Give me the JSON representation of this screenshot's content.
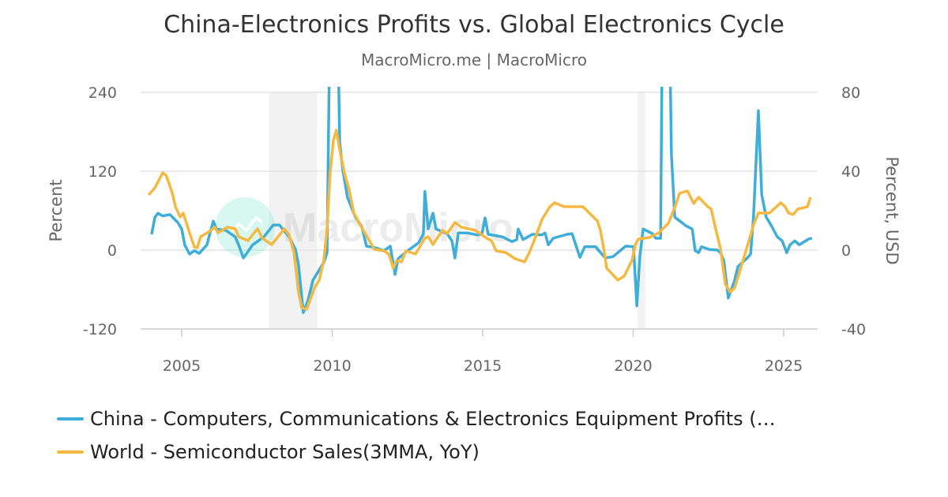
{
  "chart_data": {
    "type": "line",
    "title": "China-Electronics Profits vs. Global Electronics Cycle",
    "subtitle": "MacroMicro.me | MacroMicro",
    "watermark": "MacroMicro",
    "ylabel_left": "Percent",
    "ylabel_right": "Percent, USD",
    "xlim": [
      2004,
      2026.1
    ],
    "ylim_left": [
      -120,
      240
    ],
    "ylim_right": [
      -40,
      80
    ],
    "x_ticks": [
      "2005",
      "2010",
      "2015",
      "2020",
      "2025"
    ],
    "y_ticks_left": [
      "240",
      "120",
      "0",
      "-120"
    ],
    "y_ticks_right": [
      "80",
      "40",
      "0",
      "-40"
    ],
    "grid": true,
    "legend_position": "bottom",
    "shaded_periods": [
      [
        2007.9,
        2009.5
      ],
      [
        2020.15,
        2020.4
      ]
    ],
    "series": [
      {
        "name": "China - Computers, Communications & Electronics Equipment Profits (…",
        "axis": "left",
        "color": "#3eaed9",
        "points": [
          [
            2004.0,
            24
          ],
          [
            2004.11,
            50
          ],
          [
            2004.21,
            56
          ],
          [
            2004.37,
            52
          ],
          [
            2004.61,
            54
          ],
          [
            2004.87,
            42
          ],
          [
            2005.0,
            32
          ],
          [
            2005.1,
            8
          ],
          [
            2005.26,
            -6
          ],
          [
            2005.42,
            -1
          ],
          [
            2005.58,
            -5
          ],
          [
            2005.84,
            8
          ],
          [
            2005.94,
            26
          ],
          [
            2006.05,
            44
          ],
          [
            2006.15,
            32
          ],
          [
            2006.47,
            30
          ],
          [
            2006.78,
            20
          ],
          [
            2006.89,
            8
          ],
          [
            2007.05,
            -12
          ],
          [
            2007.36,
            8
          ],
          [
            2007.73,
            20
          ],
          [
            2008.04,
            38
          ],
          [
            2008.25,
            38
          ],
          [
            2008.57,
            20
          ],
          [
            2008.78,
            1
          ],
          [
            2008.88,
            -22
          ],
          [
            2009.04,
            -95
          ],
          [
            2009.2,
            -76
          ],
          [
            2009.36,
            -46
          ],
          [
            2009.72,
            -19
          ],
          [
            2009.83,
            -4
          ],
          [
            2009.91,
            300
          ],
          [
            2010.2,
            300
          ],
          [
            2010.25,
            164
          ],
          [
            2010.35,
            122
          ],
          [
            2010.51,
            80
          ],
          [
            2010.77,
            50
          ],
          [
            2010.98,
            36
          ],
          [
            2011.14,
            6
          ],
          [
            2011.4,
            4
          ],
          [
            2011.72,
            -1
          ],
          [
            2011.93,
            6
          ],
          [
            2012.09,
            -37
          ],
          [
            2012.19,
            -13
          ],
          [
            2012.51,
            -1
          ],
          [
            2012.87,
            11
          ],
          [
            2013.03,
            24
          ],
          [
            2013.08,
            89
          ],
          [
            2013.19,
            32
          ],
          [
            2013.35,
            56
          ],
          [
            2013.45,
            32
          ],
          [
            2013.82,
            25
          ],
          [
            2013.98,
            14
          ],
          [
            2014.08,
            -12
          ],
          [
            2014.19,
            26
          ],
          [
            2014.5,
            26
          ],
          [
            2014.82,
            23
          ],
          [
            2014.97,
            24
          ],
          [
            2015.08,
            49
          ],
          [
            2015.18,
            24
          ],
          [
            2015.66,
            20
          ],
          [
            2015.97,
            13
          ],
          [
            2016.13,
            16
          ],
          [
            2016.18,
            32
          ],
          [
            2016.34,
            16
          ],
          [
            2016.65,
            24
          ],
          [
            2016.97,
            23
          ],
          [
            2017.07,
            26
          ],
          [
            2017.18,
            8
          ],
          [
            2017.34,
            18
          ],
          [
            2017.81,
            24
          ],
          [
            2017.97,
            25
          ],
          [
            2018.12,
            4
          ],
          [
            2018.23,
            -11
          ],
          [
            2018.39,
            5
          ],
          [
            2018.75,
            5
          ],
          [
            2019.07,
            -12
          ],
          [
            2019.33,
            -10
          ],
          [
            2019.75,
            6
          ],
          [
            2020.01,
            5
          ],
          [
            2020.12,
            -85
          ],
          [
            2020.22,
            -10
          ],
          [
            2020.33,
            32
          ],
          [
            2020.64,
            25
          ],
          [
            2020.75,
            18
          ],
          [
            2020.91,
            18
          ],
          [
            2020.96,
            300
          ],
          [
            2021.22,
            300
          ],
          [
            2021.27,
            146
          ],
          [
            2021.38,
            50
          ],
          [
            2021.64,
            41
          ],
          [
            2021.75,
            37
          ],
          [
            2021.96,
            32
          ],
          [
            2022.06,
            -1
          ],
          [
            2022.17,
            -4
          ],
          [
            2022.27,
            5
          ],
          [
            2022.53,
            1
          ],
          [
            2022.8,
            0
          ],
          [
            2022.9,
            -4
          ],
          [
            2023.01,
            -16
          ],
          [
            2023.16,
            -73
          ],
          [
            2023.37,
            -46
          ],
          [
            2023.48,
            -25
          ],
          [
            2023.79,
            -12
          ],
          [
            2023.9,
            -6
          ],
          [
            2024.0,
            53
          ],
          [
            2024.16,
            212
          ],
          [
            2024.27,
            84
          ],
          [
            2024.42,
            50
          ],
          [
            2024.58,
            38
          ],
          [
            2024.79,
            20
          ],
          [
            2024.95,
            14
          ],
          [
            2025.1,
            -4
          ],
          [
            2025.21,
            8
          ],
          [
            2025.37,
            14
          ],
          [
            2025.52,
            8
          ],
          [
            2025.84,
            17
          ],
          [
            2025.94,
            18
          ]
        ]
      },
      {
        "name": "World - Semiconductor Sales(3MMA, YoY)",
        "axis": "right",
        "color": "#f5b942",
        "points": [
          [
            2003.9,
            28
          ],
          [
            2004.11,
            31.6
          ],
          [
            2004.37,
            39.2
          ],
          [
            2004.48,
            38
          ],
          [
            2004.69,
            28.8
          ],
          [
            2004.79,
            22
          ],
          [
            2004.95,
            16.8
          ],
          [
            2005.05,
            18.8
          ],
          [
            2005.26,
            8.8
          ],
          [
            2005.42,
            1.6
          ],
          [
            2005.52,
            1.2
          ],
          [
            2005.63,
            6.8
          ],
          [
            2005.94,
            9.6
          ],
          [
            2006.1,
            11.6
          ],
          [
            2006.21,
            8.8
          ],
          [
            2006.52,
            11.6
          ],
          [
            2006.78,
            10.8
          ],
          [
            2006.89,
            6.8
          ],
          [
            2007.2,
            4.8
          ],
          [
            2007.52,
            10.8
          ],
          [
            2007.68,
            6
          ],
          [
            2007.99,
            2.8
          ],
          [
            2008.31,
            8.8
          ],
          [
            2008.41,
            10.8
          ],
          [
            2008.57,
            7.6
          ],
          [
            2008.73,
            -1.2
          ],
          [
            2008.88,
            -21.2
          ],
          [
            2008.99,
            -29.2
          ],
          [
            2009.15,
            -30
          ],
          [
            2009.41,
            -19.2
          ],
          [
            2009.57,
            -15.2
          ],
          [
            2009.72,
            -5.2
          ],
          [
            2009.83,
            10.8
          ],
          [
            2009.93,
            38.8
          ],
          [
            2010.04,
            55.6
          ],
          [
            2010.14,
            60.8
          ],
          [
            2010.25,
            50.8
          ],
          [
            2010.41,
            38.8
          ],
          [
            2010.56,
            30.8
          ],
          [
            2010.72,
            18.8
          ],
          [
            2010.93,
            12.8
          ],
          [
            2011.25,
            4.4
          ],
          [
            2011.4,
            0.4
          ],
          [
            2011.72,
            -0.4
          ],
          [
            2011.88,
            -2
          ],
          [
            2012.03,
            -9.2
          ],
          [
            2012.14,
            -5.2
          ],
          [
            2012.3,
            -6
          ],
          [
            2012.45,
            -0.4
          ],
          [
            2012.77,
            -2
          ],
          [
            2013.08,
            6
          ],
          [
            2013.19,
            6.8
          ],
          [
            2013.35,
            2.8
          ],
          [
            2013.66,
            10
          ],
          [
            2013.82,
            8.4
          ],
          [
            2014.08,
            14
          ],
          [
            2014.29,
            11.6
          ],
          [
            2014.76,
            10
          ],
          [
            2015.13,
            6
          ],
          [
            2015.29,
            4.8
          ],
          [
            2015.45,
            -0.4
          ],
          [
            2015.76,
            -1.2
          ],
          [
            2016.08,
            -4.4
          ],
          [
            2016.39,
            -6
          ],
          [
            2016.55,
            -1.2
          ],
          [
            2016.71,
            4.8
          ],
          [
            2016.97,
            15.6
          ],
          [
            2017.23,
            22
          ],
          [
            2017.39,
            24
          ],
          [
            2017.7,
            22
          ],
          [
            2018.02,
            22
          ],
          [
            2018.33,
            22
          ],
          [
            2018.54,
            18.8
          ],
          [
            2018.81,
            14.8
          ],
          [
            2018.91,
            10
          ],
          [
            2019.02,
            0.8
          ],
          [
            2019.12,
            -9.2
          ],
          [
            2019.49,
            -15.2
          ],
          [
            2019.7,
            -13.2
          ],
          [
            2019.96,
            -5.2
          ],
          [
            2020.07,
            2.8
          ],
          [
            2020.17,
            5.6
          ],
          [
            2020.54,
            6.4
          ],
          [
            2020.85,
            8.8
          ],
          [
            2021.17,
            13.6
          ],
          [
            2021.43,
            23.6
          ],
          [
            2021.54,
            28.8
          ],
          [
            2021.8,
            30
          ],
          [
            2022.01,
            23.6
          ],
          [
            2022.17,
            26.8
          ],
          [
            2022.48,
            22
          ],
          [
            2022.59,
            20.8
          ],
          [
            2022.74,
            10.8
          ],
          [
            2022.9,
            0.8
          ],
          [
            2023.06,
            -17.2
          ],
          [
            2023.22,
            -21.2
          ],
          [
            2023.37,
            -19.2
          ],
          [
            2023.69,
            -3.2
          ],
          [
            2024.0,
            12.8
          ],
          [
            2024.16,
            18.8
          ],
          [
            2024.53,
            18.8
          ],
          [
            2024.9,
            24
          ],
          [
            2025.05,
            22
          ],
          [
            2025.16,
            18.8
          ],
          [
            2025.31,
            18
          ],
          [
            2025.47,
            20.8
          ],
          [
            2025.79,
            22
          ],
          [
            2025.89,
            26.8
          ]
        ]
      }
    ]
  }
}
